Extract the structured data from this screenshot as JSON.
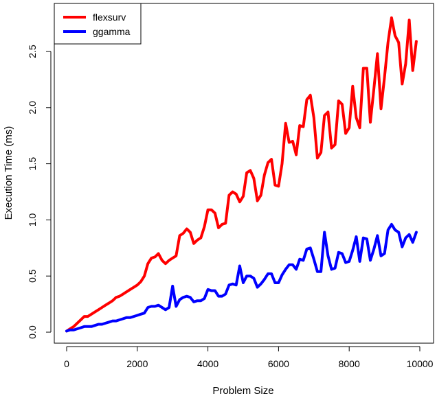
{
  "chart_data": {
    "type": "line",
    "title": "",
    "xlabel": "Problem Size",
    "ylabel": "Execution Time (ms)",
    "xlim": [
      0,
      10000
    ],
    "ylim": [
      0.0,
      2.8
    ],
    "x_ticks": [
      0,
      2000,
      4000,
      6000,
      8000,
      10000
    ],
    "x_tick_labels": [
      "0",
      "2000",
      "4000",
      "6000",
      "8000",
      "10000"
    ],
    "y_ticks": [
      0.0,
      0.5,
      1.0,
      1.5,
      2.0,
      2.5
    ],
    "y_tick_labels": [
      "0.0",
      "0.5",
      "1.0",
      "1.5",
      "2.0",
      "2.5"
    ],
    "grid": false,
    "legend_position": "top-left",
    "series": [
      {
        "name": "flexsurv",
        "color": "#ff0000",
        "points": [
          [
            0,
            0.01
          ],
          [
            100,
            0.03
          ],
          [
            200,
            0.05
          ],
          [
            300,
            0.08
          ],
          [
            400,
            0.11
          ],
          [
            500,
            0.14
          ],
          [
            600,
            0.14
          ],
          [
            700,
            0.16
          ],
          [
            800,
            0.18
          ],
          [
            900,
            0.2
          ],
          [
            1000,
            0.22
          ],
          [
            1100,
            0.24
          ],
          [
            1200,
            0.26
          ],
          [
            1300,
            0.28
          ],
          [
            1400,
            0.31
          ],
          [
            1500,
            0.32
          ],
          [
            1600,
            0.34
          ],
          [
            1700,
            0.36
          ],
          [
            1800,
            0.38
          ],
          [
            1900,
            0.4
          ],
          [
            2000,
            0.42
          ],
          [
            2100,
            0.45
          ],
          [
            2200,
            0.5
          ],
          [
            2300,
            0.61
          ],
          [
            2400,
            0.66
          ],
          [
            2500,
            0.67
          ],
          [
            2600,
            0.7
          ],
          [
            2700,
            0.64
          ],
          [
            2800,
            0.61
          ],
          [
            2900,
            0.64
          ],
          [
            3000,
            0.66
          ],
          [
            3100,
            0.68
          ],
          [
            3200,
            0.86
          ],
          [
            3300,
            0.88
          ],
          [
            3400,
            0.92
          ],
          [
            3500,
            0.89
          ],
          [
            3600,
            0.79
          ],
          [
            3700,
            0.82
          ],
          [
            3800,
            0.84
          ],
          [
            3900,
            0.94
          ],
          [
            4000,
            1.09
          ],
          [
            4100,
            1.09
          ],
          [
            4200,
            1.06
          ],
          [
            4300,
            0.93
          ],
          [
            4400,
            0.96
          ],
          [
            4500,
            0.97
          ],
          [
            4600,
            1.22
          ],
          [
            4700,
            1.25
          ],
          [
            4800,
            1.23
          ],
          [
            4900,
            1.16
          ],
          [
            5000,
            1.21
          ],
          [
            5100,
            1.42
          ],
          [
            5200,
            1.44
          ],
          [
            5300,
            1.37
          ],
          [
            5400,
            1.17
          ],
          [
            5500,
            1.22
          ],
          [
            5600,
            1.4
          ],
          [
            5700,
            1.51
          ],
          [
            5800,
            1.54
          ],
          [
            5900,
            1.31
          ],
          [
            6000,
            1.3
          ],
          [
            6100,
            1.5
          ],
          [
            6200,
            1.86
          ],
          [
            6300,
            1.69
          ],
          [
            6400,
            1.7
          ],
          [
            6500,
            1.58
          ],
          [
            6600,
            1.84
          ],
          [
            6700,
            1.83
          ],
          [
            6800,
            2.07
          ],
          [
            6900,
            2.11
          ],
          [
            7000,
            1.91
          ],
          [
            7100,
            1.55
          ],
          [
            7200,
            1.6
          ],
          [
            7300,
            1.93
          ],
          [
            7400,
            1.96
          ],
          [
            7500,
            1.64
          ],
          [
            7600,
            1.67
          ],
          [
            7700,
            2.06
          ],
          [
            7800,
            2.03
          ],
          [
            7900,
            1.77
          ],
          [
            8000,
            1.82
          ],
          [
            8100,
            2.19
          ],
          [
            8200,
            1.91
          ],
          [
            8300,
            1.82
          ],
          [
            8400,
            2.35
          ],
          [
            8500,
            2.35
          ],
          [
            8600,
            1.87
          ],
          [
            8700,
            2.17
          ],
          [
            8800,
            2.48
          ],
          [
            8900,
            1.99
          ],
          [
            9000,
            2.27
          ],
          [
            9100,
            2.58
          ],
          [
            9200,
            2.8
          ],
          [
            9300,
            2.64
          ],
          [
            9400,
            2.58
          ],
          [
            9500,
            2.21
          ],
          [
            9600,
            2.39
          ],
          [
            9700,
            2.78
          ],
          [
            9800,
            2.33
          ],
          [
            9900,
            2.59
          ]
        ]
      },
      {
        "name": "ggamma",
        "color": "#0000ff",
        "points": [
          [
            0,
            0.01
          ],
          [
            100,
            0.02
          ],
          [
            200,
            0.02
          ],
          [
            300,
            0.03
          ],
          [
            400,
            0.04
          ],
          [
            500,
            0.05
          ],
          [
            600,
            0.05
          ],
          [
            700,
            0.05
          ],
          [
            800,
            0.06
          ],
          [
            900,
            0.07
          ],
          [
            1000,
            0.07
          ],
          [
            1100,
            0.08
          ],
          [
            1200,
            0.09
          ],
          [
            1300,
            0.1
          ],
          [
            1400,
            0.1
          ],
          [
            1500,
            0.11
          ],
          [
            1600,
            0.12
          ],
          [
            1700,
            0.13
          ],
          [
            1800,
            0.13
          ],
          [
            1900,
            0.14
          ],
          [
            2000,
            0.15
          ],
          [
            2100,
            0.16
          ],
          [
            2200,
            0.17
          ],
          [
            2300,
            0.22
          ],
          [
            2400,
            0.23
          ],
          [
            2500,
            0.23
          ],
          [
            2600,
            0.24
          ],
          [
            2700,
            0.22
          ],
          [
            2800,
            0.2
          ],
          [
            2900,
            0.22
          ],
          [
            3000,
            0.41
          ],
          [
            3100,
            0.23
          ],
          [
            3200,
            0.29
          ],
          [
            3300,
            0.31
          ],
          [
            3400,
            0.32
          ],
          [
            3500,
            0.31
          ],
          [
            3600,
            0.27
          ],
          [
            3700,
            0.28
          ],
          [
            3800,
            0.28
          ],
          [
            3900,
            0.3
          ],
          [
            4000,
            0.38
          ],
          [
            4100,
            0.37
          ],
          [
            4200,
            0.37
          ],
          [
            4300,
            0.32
          ],
          [
            4400,
            0.32
          ],
          [
            4500,
            0.34
          ],
          [
            4600,
            0.42
          ],
          [
            4700,
            0.43
          ],
          [
            4800,
            0.42
          ],
          [
            4900,
            0.59
          ],
          [
            5000,
            0.44
          ],
          [
            5100,
            0.5
          ],
          [
            5200,
            0.5
          ],
          [
            5300,
            0.48
          ],
          [
            5400,
            0.4
          ],
          [
            5500,
            0.43
          ],
          [
            5600,
            0.47
          ],
          [
            5700,
            0.52
          ],
          [
            5800,
            0.52
          ],
          [
            5900,
            0.44
          ],
          [
            6000,
            0.44
          ],
          [
            6100,
            0.51
          ],
          [
            6200,
            0.56
          ],
          [
            6300,
            0.6
          ],
          [
            6400,
            0.6
          ],
          [
            6500,
            0.56
          ],
          [
            6600,
            0.65
          ],
          [
            6700,
            0.64
          ],
          [
            6800,
            0.74
          ],
          [
            6900,
            0.75
          ],
          [
            7000,
            0.65
          ],
          [
            7100,
            0.54
          ],
          [
            7200,
            0.54
          ],
          [
            7300,
            0.89
          ],
          [
            7400,
            0.68
          ],
          [
            7500,
            0.56
          ],
          [
            7600,
            0.57
          ],
          [
            7700,
            0.71
          ],
          [
            7800,
            0.7
          ],
          [
            7900,
            0.62
          ],
          [
            8000,
            0.63
          ],
          [
            8100,
            0.73
          ],
          [
            8200,
            0.85
          ],
          [
            8300,
            0.63
          ],
          [
            8400,
            0.84
          ],
          [
            8500,
            0.83
          ],
          [
            8600,
            0.64
          ],
          [
            8700,
            0.74
          ],
          [
            8800,
            0.86
          ],
          [
            8900,
            0.68
          ],
          [
            9000,
            0.7
          ],
          [
            9100,
            0.91
          ],
          [
            9200,
            0.96
          ],
          [
            9300,
            0.91
          ],
          [
            9400,
            0.89
          ],
          [
            9500,
            0.76
          ],
          [
            9600,
            0.84
          ],
          [
            9700,
            0.87
          ],
          [
            9800,
            0.8
          ],
          [
            9900,
            0.89
          ]
        ]
      }
    ]
  }
}
